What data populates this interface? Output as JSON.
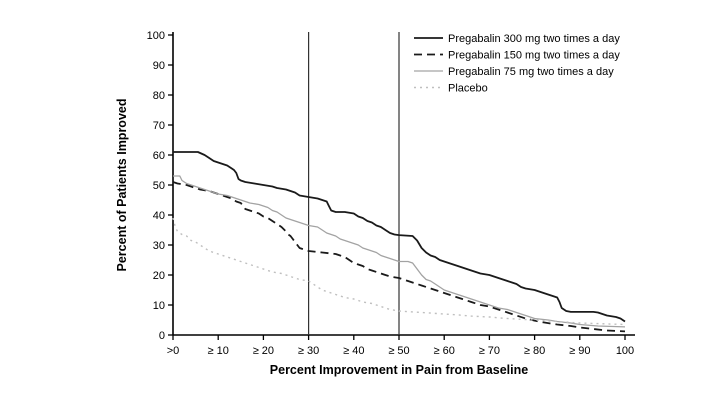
{
  "figure": {
    "background": "#ffffff",
    "axis_color": "#000000",
    "reference_line_color": "#333333"
  },
  "chart_data": {
    "type": "line",
    "title": "",
    "xlabel": "Percent Improvement in Pain from Baseline",
    "ylabel": "Percent of Patients Improved",
    "xlim": [
      0,
      100
    ],
    "ylim": [
      0,
      100
    ],
    "grid": false,
    "legend_position": "top-right",
    "x_tick_values": [
      0,
      10,
      20,
      30,
      40,
      50,
      60,
      70,
      80,
      90,
      100
    ],
    "x_tick_labels": [
      ">0",
      "≥ 10",
      "≥ 20",
      "≥ 30",
      "≥ 40",
      "≥ 50",
      "≥ 60",
      "≥ 70",
      "≥ 80",
      "≥ 90",
      "100"
    ],
    "y_tick_values": [
      0,
      10,
      20,
      30,
      40,
      50,
      60,
      70,
      80,
      90,
      100
    ],
    "reference_lines_x": [
      30,
      50
    ],
    "series": [
      {
        "key": "pregabalin-300",
        "name": "Pregabalin 300 mg two times a day",
        "color": "#1a1a1a",
        "style": "solid",
        "width": 1.8,
        "points": [
          [
            0,
            61
          ],
          [
            5.5,
            61
          ],
          [
            7,
            60
          ],
          [
            8,
            59
          ],
          [
            9,
            58
          ],
          [
            10,
            57.5
          ],
          [
            11,
            57
          ],
          [
            12,
            56.5
          ],
          [
            13,
            55.5
          ],
          [
            13.5,
            55
          ],
          [
            14,
            54
          ],
          [
            14.5,
            52
          ],
          [
            15,
            51.5
          ],
          [
            16,
            51
          ],
          [
            18,
            50.5
          ],
          [
            20,
            50
          ],
          [
            22,
            49.5
          ],
          [
            23,
            49
          ],
          [
            25,
            48.5
          ],
          [
            26,
            48
          ],
          [
            27,
            47.5
          ],
          [
            28,
            46.5
          ],
          [
            30,
            46
          ],
          [
            32,
            45.5
          ],
          [
            33,
            45
          ],
          [
            34,
            44.5
          ],
          [
            34.5,
            43
          ],
          [
            35,
            41.5
          ],
          [
            36,
            41
          ],
          [
            38,
            41
          ],
          [
            40,
            40.5
          ],
          [
            41,
            39.5
          ],
          [
            42,
            39
          ],
          [
            43,
            38
          ],
          [
            44,
            37.5
          ],
          [
            45,
            36.5
          ],
          [
            46,
            36
          ],
          [
            47,
            35
          ],
          [
            48,
            34
          ],
          [
            49,
            33.5
          ],
          [
            50,
            33.3
          ],
          [
            53,
            33
          ],
          [
            54,
            31.5
          ],
          [
            55,
            29
          ],
          [
            56,
            27.5
          ],
          [
            57,
            26.5
          ],
          [
            58,
            26
          ],
          [
            59,
            25
          ],
          [
            60,
            24.5
          ],
          [
            61,
            24
          ],
          [
            63,
            23
          ],
          [
            64,
            22.5
          ],
          [
            65,
            22
          ],
          [
            66,
            21.5
          ],
          [
            68,
            20.5
          ],
          [
            70,
            20
          ],
          [
            71,
            19.5
          ],
          [
            72,
            19
          ],
          [
            74,
            18
          ],
          [
            75,
            17.5
          ],
          [
            76,
            17
          ],
          [
            77,
            16
          ],
          [
            78,
            15.5
          ],
          [
            80,
            15
          ],
          [
            81,
            14.5
          ],
          [
            82,
            14
          ],
          [
            84,
            13
          ],
          [
            85,
            12.5
          ],
          [
            85.5,
            11
          ],
          [
            86,
            9
          ],
          [
            87,
            8
          ],
          [
            88,
            7.7
          ],
          [
            93,
            7.7
          ],
          [
            94,
            7.5
          ],
          [
            95,
            7
          ],
          [
            96,
            6.5
          ],
          [
            98,
            6
          ],
          [
            99,
            5.5
          ],
          [
            100,
            4.5
          ]
        ]
      },
      {
        "key": "pregabalin-150",
        "name": "Pregabalin 150 mg two times a day",
        "color": "#1a1a1a",
        "style": "dashed",
        "width": 1.8,
        "points": [
          [
            0,
            51
          ],
          [
            1,
            50.5
          ],
          [
            3,
            50
          ],
          [
            5,
            49
          ],
          [
            6,
            48.5
          ],
          [
            8,
            48
          ],
          [
            9,
            47.5
          ],
          [
            10,
            47
          ],
          [
            11,
            46.5
          ],
          [
            12,
            46
          ],
          [
            13,
            45.5
          ],
          [
            14,
            44.5
          ],
          [
            15,
            44
          ],
          [
            15.5,
            43
          ],
          [
            16,
            42
          ],
          [
            17,
            41.5
          ],
          [
            18,
            41
          ],
          [
            19,
            40.5
          ],
          [
            20,
            39.5
          ],
          [
            21,
            39
          ],
          [
            22,
            38
          ],
          [
            23,
            37
          ],
          [
            24,
            36
          ],
          [
            25,
            34.5
          ],
          [
            25.5,
            33.5
          ],
          [
            26,
            33
          ],
          [
            26.5,
            32
          ],
          [
            27,
            31
          ],
          [
            27.5,
            30
          ],
          [
            28,
            29
          ],
          [
            29,
            28.5
          ],
          [
            30,
            28
          ],
          [
            33,
            27.5
          ],
          [
            36,
            27
          ],
          [
            37,
            26.5
          ],
          [
            38,
            26
          ],
          [
            39,
            25
          ],
          [
            40,
            24
          ],
          [
            41,
            23.5
          ],
          [
            42,
            23
          ],
          [
            43,
            22
          ],
          [
            44,
            21.5
          ],
          [
            45,
            21
          ],
          [
            46,
            20.5
          ],
          [
            47,
            20
          ],
          [
            48,
            19.5
          ],
          [
            50,
            19
          ],
          [
            52,
            18
          ],
          [
            54,
            17
          ],
          [
            55,
            16.5
          ],
          [
            56,
            16
          ],
          [
            57,
            15.5
          ],
          [
            58,
            15
          ],
          [
            60,
            14
          ],
          [
            62,
            13
          ],
          [
            64,
            12
          ],
          [
            66,
            11
          ],
          [
            68,
            10
          ],
          [
            70,
            9.5
          ],
          [
            72,
            8.5
          ],
          [
            74,
            7.5
          ],
          [
            76,
            6.5
          ],
          [
            78,
            5.5
          ],
          [
            80,
            4.8
          ],
          [
            82,
            4.2
          ],
          [
            85,
            3.5
          ],
          [
            88,
            3
          ],
          [
            90,
            2.5
          ],
          [
            93,
            2
          ],
          [
            96,
            1.5
          ],
          [
            100,
            1.2
          ]
        ]
      },
      {
        "key": "pregabalin-75",
        "name": "Pregabalin 75 mg two times a day",
        "color": "#a3a3a3",
        "style": "solid",
        "width": 1.3,
        "points": [
          [
            0,
            53
          ],
          [
            1.5,
            53
          ],
          [
            2,
            51.5
          ],
          [
            3,
            50.5
          ],
          [
            5,
            49.5
          ],
          [
            7,
            48.5
          ],
          [
            9,
            47.5
          ],
          [
            10,
            47
          ],
          [
            12,
            46.5
          ],
          [
            13,
            46
          ],
          [
            15,
            45
          ],
          [
            16,
            44.5
          ],
          [
            17,
            44
          ],
          [
            19,
            43.5
          ],
          [
            20,
            43
          ],
          [
            21,
            42.5
          ],
          [
            22,
            41.5
          ],
          [
            23,
            41
          ],
          [
            24,
            40
          ],
          [
            25,
            39
          ],
          [
            26,
            38.5
          ],
          [
            28,
            37.5
          ],
          [
            30,
            36.5
          ],
          [
            32,
            36
          ],
          [
            33,
            35
          ],
          [
            34,
            34
          ],
          [
            35,
            33.5
          ],
          [
            36,
            33
          ],
          [
            37,
            32
          ],
          [
            38,
            31.5
          ],
          [
            40,
            30.5
          ],
          [
            41,
            30
          ],
          [
            42,
            29
          ],
          [
            43,
            28.5
          ],
          [
            44,
            28
          ],
          [
            45,
            27.5
          ],
          [
            46,
            26.5
          ],
          [
            47,
            26
          ],
          [
            48,
            25.5
          ],
          [
            50,
            24.5
          ],
          [
            52,
            24.5
          ],
          [
            53,
            24
          ],
          [
            54,
            22
          ],
          [
            55,
            20
          ],
          [
            56,
            18.5
          ],
          [
            57,
            18
          ],
          [
            58,
            17
          ],
          [
            59,
            16
          ],
          [
            60,
            15
          ],
          [
            61,
            14.5
          ],
          [
            62,
            14
          ],
          [
            64,
            13
          ],
          [
            66,
            12
          ],
          [
            68,
            11
          ],
          [
            70,
            10
          ],
          [
            72,
            9
          ],
          [
            74,
            8.5
          ],
          [
            76,
            7.5
          ],
          [
            78,
            6.5
          ],
          [
            80,
            5.5
          ],
          [
            83,
            5
          ],
          [
            85,
            4.5
          ],
          [
            88,
            4
          ],
          [
            90,
            3.5
          ],
          [
            94,
            3
          ],
          [
            100,
            2.7
          ]
        ]
      },
      {
        "key": "placebo",
        "name": "Placebo",
        "color": "#bfbfbf",
        "style": "dotted",
        "width": 1.4,
        "points": [
          [
            0,
            39
          ],
          [
            0.5,
            36
          ],
          [
            1,
            34.5
          ],
          [
            2,
            33.5
          ],
          [
            3,
            33
          ],
          [
            4,
            31.5
          ],
          [
            5,
            31
          ],
          [
            6,
            30
          ],
          [
            7,
            29
          ],
          [
            8,
            28
          ],
          [
            9,
            27.5
          ],
          [
            10,
            27
          ],
          [
            12,
            26
          ],
          [
            14,
            25
          ],
          [
            16,
            24
          ],
          [
            18,
            23
          ],
          [
            20,
            22
          ],
          [
            22,
            21
          ],
          [
            24,
            20.5
          ],
          [
            25,
            20
          ],
          [
            27,
            19
          ],
          [
            28,
            18.5
          ],
          [
            30,
            18
          ],
          [
            31,
            17
          ],
          [
            32,
            16
          ],
          [
            33,
            15
          ],
          [
            34,
            14.5
          ],
          [
            35,
            14
          ],
          [
            36,
            13.5
          ],
          [
            38,
            12.5
          ],
          [
            40,
            12
          ],
          [
            42,
            11
          ],
          [
            44,
            10.5
          ],
          [
            45,
            10
          ],
          [
            46,
            9.5
          ],
          [
            47,
            9
          ],
          [
            48,
            8.5
          ],
          [
            50,
            8
          ],
          [
            53,
            7.7
          ],
          [
            56,
            7.4
          ],
          [
            60,
            7
          ],
          [
            63,
            6.7
          ],
          [
            66,
            6.3
          ],
          [
            70,
            6
          ],
          [
            73,
            5.6
          ],
          [
            76,
            5.3
          ],
          [
            80,
            5
          ],
          [
            84,
            4.6
          ],
          [
            88,
            4.2
          ],
          [
            90,
            4
          ],
          [
            94,
            3.8
          ],
          [
            100,
            3.5
          ]
        ]
      }
    ]
  }
}
